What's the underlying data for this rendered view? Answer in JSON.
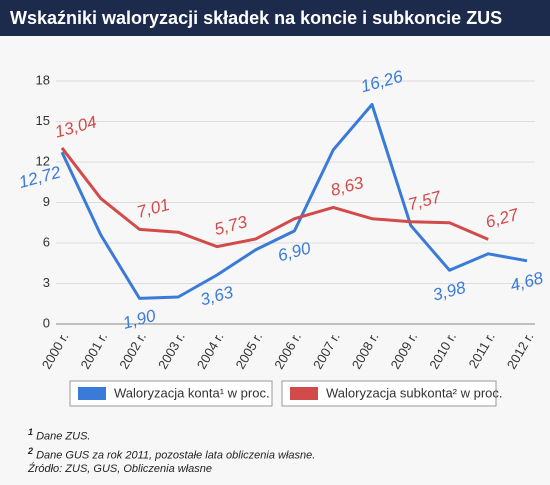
{
  "chart_data": {
    "type": "line",
    "title": "Wskaźniki waloryzacji składek na koncie i subkoncie ZUS",
    "categories": [
      "2000 r.",
      "2001 r.",
      "2002 r.",
      "2003 r.",
      "2004 r.",
      "2005 r.",
      "2006 r.",
      "2007 r.",
      "2008 r.",
      "2009 r.",
      "2010 r.",
      "2011 r.",
      "2012 r."
    ],
    "series": [
      {
        "name": "Waloryzacja konta¹ w proc.",
        "color": "#3a7ad8",
        "values": [
          12.72,
          6.6,
          1.9,
          2.0,
          3.63,
          5.5,
          6.9,
          12.9,
          16.26,
          7.3,
          3.98,
          5.2,
          4.68
        ],
        "value_labels": [
          "12,72",
          null,
          "1,90",
          null,
          "3,63",
          null,
          "6,90",
          null,
          "16,26",
          null,
          "3,98",
          null,
          "4,68"
        ]
      },
      {
        "name": "Waloryzacja subkonta² w proc.",
        "color": "#d24b4b",
        "values": [
          13.04,
          9.3,
          7.01,
          6.8,
          5.73,
          6.3,
          7.8,
          8.63,
          7.8,
          7.57,
          7.5,
          6.27,
          null
        ],
        "value_labels": [
          "13,04",
          null,
          "7,01",
          null,
          "5,73",
          null,
          null,
          "8,63",
          null,
          "7,57",
          null,
          "6,27",
          null
        ]
      }
    ],
    "ylim": [
      0,
      18
    ],
    "yticks": [
      0,
      3,
      6,
      9,
      12,
      15,
      18
    ],
    "grid": true
  },
  "notes": [
    {
      "marker": "1",
      "text": "Dane ZUS."
    },
    {
      "marker": "2",
      "text": "Dane GUS za rok 2011, pozostałe lata obliczenia własne."
    }
  ],
  "source": "Źródło: ZUS, GUS, Obliczenia własne"
}
